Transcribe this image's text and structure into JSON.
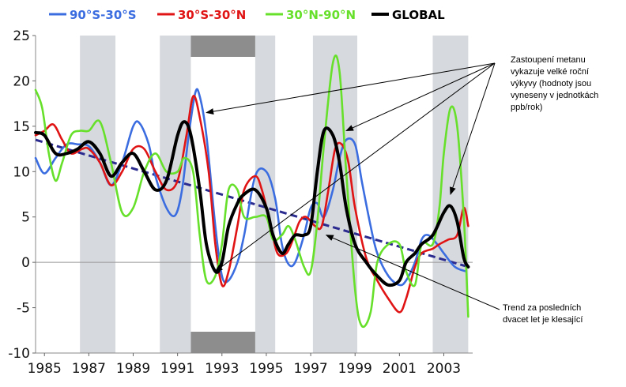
{
  "chart_data": {
    "type": "line",
    "legend": [
      {
        "label": "90°S-30°S",
        "color": "#3b6de0"
      },
      {
        "label": "30°S-30°N",
        "color": "#e01414"
      },
      {
        "label": "30°N-90°N",
        "color": "#66e02a"
      },
      {
        "label": "GLOBAL",
        "color": "#000000"
      }
    ],
    "legend_position": "top",
    "xlim": [
      1984.6,
      2004.3
    ],
    "ylim": [
      -10,
      25
    ],
    "x_ticks": [
      "1985",
      "1987",
      "1989",
      "1991",
      "1993",
      "1995",
      "1997",
      "1999",
      "2001",
      "2003"
    ],
    "x_tick_values": [
      1985,
      1987,
      1989,
      1991,
      1993,
      1995,
      1997,
      1999,
      2001,
      2003
    ],
    "y_ticks": [
      "25",
      "20",
      "15",
      "10",
      "5",
      "0",
      "-5",
      "-10"
    ],
    "y_tick_values": [
      25,
      20,
      15,
      10,
      5,
      0,
      -5,
      -10
    ],
    "shaded_periods": [
      [
        1986.6,
        1988.2
      ],
      [
        1990.2,
        1991.6
      ],
      [
        1994.5,
        1995.4
      ],
      [
        1997.1,
        1999.1
      ],
      [
        2002.5,
        2004.1
      ]
    ],
    "dark_band_period": [
      1991.6,
      1994.5
    ],
    "zero_line": true,
    "series": [
      {
        "name": "90°S-30°S",
        "color": "#3b6de0",
        "x": [
          1984.6,
          1985.0,
          1985.5,
          1986.0,
          1986.5,
          1987.0,
          1987.5,
          1988.0,
          1988.5,
          1989.0,
          1989.3,
          1989.7,
          1990.0,
          1990.5,
          1990.9,
          1991.2,
          1991.5,
          1991.8,
          1992.0,
          1992.3,
          1992.7,
          1993.0,
          1993.3,
          1993.7,
          1994.0,
          1994.5,
          1995.0,
          1995.4,
          1995.7,
          1996.0,
          1996.3,
          1996.7,
          1997.0,
          1997.3,
          1997.6,
          1998.0,
          1998.3,
          1998.6,
          1999.0,
          1999.3,
          1999.7,
          2000.0,
          2000.5,
          2001.0,
          2001.3,
          2001.7,
          2002.0,
          2002.3,
          2002.7,
          2003.0,
          2003.5,
          2004.0
        ],
        "y": [
          11.5,
          9.8,
          11.5,
          13,
          13,
          12.8,
          11,
          8.5,
          11,
          15,
          15.3,
          13,
          9.5,
          6,
          5.2,
          8,
          14,
          18.7,
          18.3,
          14,
          4,
          -1.5,
          -2,
          0,
          3,
          9.5,
          10,
          7,
          2,
          -0.2,
          0,
          3,
          6,
          6.5,
          5,
          8,
          11.5,
          13.5,
          13,
          9,
          4,
          1,
          -1.5,
          -2.5,
          -2,
          0,
          2.5,
          3,
          2,
          1,
          -0.5,
          -1
        ]
      },
      {
        "name": "30°S-30°N",
        "color": "#e01414",
        "x": [
          1984.6,
          1985.0,
          1985.4,
          1985.8,
          1986.2,
          1986.7,
          1987.0,
          1987.5,
          1988.0,
          1988.5,
          1989.0,
          1989.5,
          1990.0,
          1990.5,
          1991.0,
          1991.4,
          1991.7,
          1992.0,
          1992.4,
          1992.7,
          1993.0,
          1993.3,
          1993.7,
          1994.0,
          1994.5,
          1994.8,
          1995.2,
          1995.5,
          1995.9,
          1996.2,
          1996.5,
          1996.8,
          1997.2,
          1997.5,
          1997.8,
          1998.1,
          1998.4,
          1998.7,
          1999.0,
          1999.5,
          2000.0,
          2000.5,
          2001.0,
          2001.3,
          2001.7,
          2002.0,
          2002.5,
          2002.8,
          2003.2,
          2003.6,
          2003.9,
          2004.1
        ],
        "y": [
          14,
          14.5,
          15.2,
          13.5,
          12,
          12.5,
          12.5,
          11,
          8.5,
          10,
          12.5,
          12.5,
          10,
          8,
          9,
          14,
          18.3,
          16,
          10,
          2,
          -2.5,
          -1,
          4,
          8,
          9.5,
          8,
          4,
          1,
          1,
          2.5,
          4.5,
          5,
          4,
          4,
          8,
          12.5,
          13,
          11,
          6,
          0.5,
          -2,
          -4,
          -5.5,
          -4,
          -0.5,
          1,
          1.5,
          2,
          2.5,
          3,
          6,
          4
        ]
      },
      {
        "name": "30°N-90°N",
        "color": "#66e02a",
        "x": [
          1984.6,
          1984.9,
          1985.2,
          1985.5,
          1985.8,
          1986.2,
          1986.6,
          1987.0,
          1987.5,
          1988.0,
          1988.5,
          1989.0,
          1989.5,
          1990.0,
          1990.5,
          1991.0,
          1991.3,
          1991.7,
          1992.0,
          1992.3,
          1992.7,
          1993.0,
          1993.3,
          1993.7,
          1994.0,
          1994.5,
          1995.0,
          1995.3,
          1995.7,
          1996.0,
          1996.3,
          1996.7,
          1997.0,
          1997.3,
          1997.6,
          1998.0,
          1998.3,
          1998.6,
          1999.0,
          1999.3,
          1999.7,
          2000.0,
          2000.5,
          2001.0,
          2001.3,
          2001.7,
          2002.0,
          2002.5,
          2002.8,
          2003.0,
          2003.3,
          2003.6,
          2003.9,
          2004.1
        ],
        "y": [
          19,
          17,
          12,
          9,
          11,
          14,
          14.5,
          14.5,
          15.5,
          11,
          5.5,
          6,
          10,
          12,
          10,
          10,
          11.5,
          10,
          3,
          -2,
          -1.5,
          2,
          8,
          8,
          5,
          5,
          5,
          2.5,
          3,
          4,
          2.5,
          -0.5,
          -1,
          4.5,
          13,
          22,
          21,
          10,
          -3,
          -7,
          -5.5,
          0,
          2,
          2,
          -1,
          -2.5,
          2,
          2,
          6,
          12,
          17,
          15,
          5,
          -6
        ]
      },
      {
        "name": "GLOBAL",
        "color": "#000000",
        "x": [
          1984.6,
          1985.0,
          1985.5,
          1986.0,
          1986.5,
          1987.0,
          1987.5,
          1988.0,
          1988.5,
          1989.0,
          1989.5,
          1990.0,
          1990.5,
          1991.0,
          1991.3,
          1991.6,
          1992.0,
          1992.3,
          1992.7,
          1993.0,
          1993.3,
          1993.7,
          1994.0,
          1994.5,
          1995.0,
          1995.3,
          1995.7,
          1996.0,
          1996.3,
          1996.7,
          1997.0,
          1997.3,
          1997.6,
          1998.0,
          1998.3,
          1998.6,
          1999.0,
          1999.5,
          2000.0,
          2000.5,
          2001.0,
          2001.3,
          2001.7,
          2002.0,
          2002.5,
          2003.0,
          2003.3,
          2003.6,
          2003.9,
          2004.1
        ],
        "y": [
          14.3,
          14,
          12,
          12,
          12.5,
          13.3,
          12,
          9.5,
          11,
          12,
          10,
          8,
          9,
          14,
          15.5,
          14,
          8,
          2,
          -1,
          0,
          4,
          6.5,
          7.5,
          8,
          6,
          3,
          1,
          2,
          3,
          3,
          4,
          10,
          14.5,
          14,
          11,
          6,
          2,
          0,
          -1.5,
          -2.5,
          -2,
          0,
          1,
          2,
          3,
          5.5,
          6.2,
          4.5,
          0.5,
          -0.5
        ]
      }
    ],
    "trend_line": {
      "x": [
        1984.6,
        2004.1
      ],
      "y": [
        13.5,
        -0.5
      ],
      "color": "#2a2a8f"
    },
    "annotations": [
      {
        "lines": [
          "Zastoupení metanu",
          "vykazuje velké roční",
          "výkyvy (hodnoty jsou",
          "vyneseny v jednotkách",
          "ppb/rok)"
        ]
      },
      {
        "lines": [
          "Trend za posledních",
          "dvacet let je klesající"
        ]
      }
    ],
    "annotation_arrow_targets": [
      {
        "x": 1992.3,
        "y": 16.5
      },
      {
        "x": 1998.6,
        "y": 14.5
      },
      {
        "x": 1992.7,
        "y": -1
      },
      {
        "x": 2003.3,
        "y": 7.5
      },
      {
        "x": 1997.7,
        "y": 3
      }
    ]
  }
}
